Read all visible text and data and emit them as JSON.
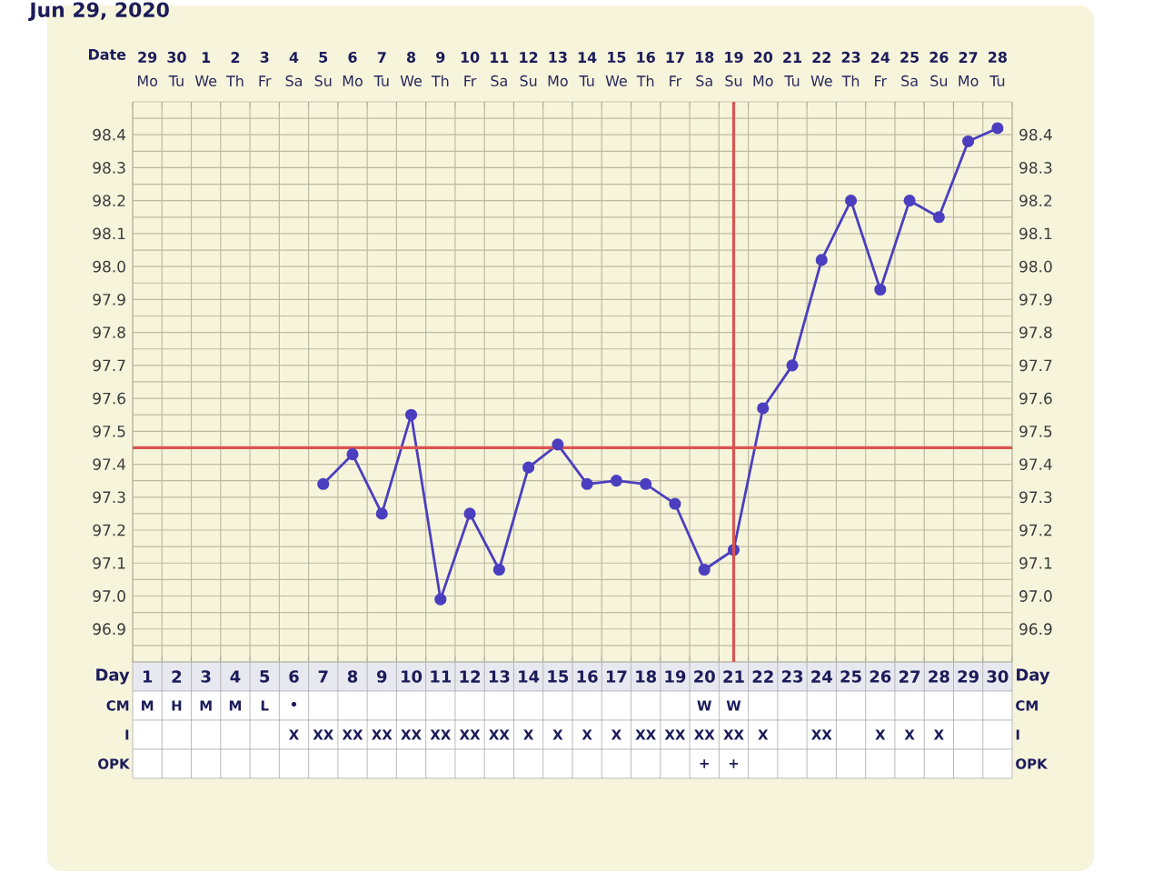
{
  "chart_data": [
    {
      "type": "line",
      "title": "Jun 29, 2020",
      "xlabel": "Day",
      "x2label": "Date",
      "categories": [
        "1",
        "2",
        "3",
        "4",
        "5",
        "6",
        "7",
        "8",
        "9",
        "10",
        "11",
        "12",
        "13",
        "14",
        "15",
        "16",
        "17",
        "18",
        "19",
        "20",
        "21",
        "22",
        "23",
        "24",
        "25",
        "26",
        "27",
        "28",
        "29",
        "30"
      ],
      "x2lim": [
        "2020-06-28T12:00",
        "2020-07-28T12:00"
      ],
      "x2ticks": [
        {
          "value": "2020-06-29",
          "label": "29"
        },
        {
          "value": "2020-06-30",
          "label": "30"
        },
        {
          "value": "2020-07-01",
          "label": "1"
        },
        {
          "value": "2020-07-02",
          "label": "2"
        },
        {
          "value": "2020-07-03",
          "label": "3"
        },
        {
          "value": "2020-07-04",
          "label": "4"
        },
        {
          "value": "2020-07-05",
          "label": "5"
        },
        {
          "value": "2020-07-06",
          "label": "6"
        },
        {
          "value": "2020-07-07",
          "label": "7"
        },
        {
          "value": "2020-07-08",
          "label": "8"
        },
        {
          "value": "2020-07-09",
          "label": "9"
        },
        {
          "value": "2020-07-10",
          "label": "10"
        },
        {
          "value": "2020-07-11",
          "label": "11"
        },
        {
          "value": "2020-07-12",
          "label": "12"
        },
        {
          "value": "2020-07-13",
          "label": "13"
        },
        {
          "value": "2020-07-14",
          "label": "14"
        },
        {
          "value": "2020-07-15",
          "label": "15"
        },
        {
          "value": "2020-07-16",
          "label": "16"
        },
        {
          "value": "2020-07-17",
          "label": "17"
        },
        {
          "value": "2020-07-18",
          "label": "18"
        },
        {
          "value": "2020-07-19",
          "label": "19"
        },
        {
          "value": "2020-07-20",
          "label": "20"
        },
        {
          "value": "2020-07-21",
          "label": "21"
        },
        {
          "value": "2020-07-22",
          "label": "22"
        },
        {
          "value": "2020-07-23",
          "label": "23"
        },
        {
          "value": "2020-07-24",
          "label": "24"
        },
        {
          "value": "2020-07-25",
          "label": "25"
        },
        {
          "value": "2020-07-26",
          "label": "26"
        },
        {
          "value": "2020-07-27",
          "label": "27"
        },
        {
          "value": "2020-07-28",
          "label": "28"
        }
      ],
      "annotations": [
        "Mo",
        "Tu",
        "We",
        "Th",
        "Fr",
        "Sa",
        "Su",
        "Mo",
        "Tu",
        "We",
        "Th",
        "Fr",
        "Sa",
        "Su",
        "Mo",
        "Tu",
        "We",
        "Th",
        "Fr",
        "Sa",
        "Su",
        "Mo",
        "Tu",
        "We",
        "Th",
        "Fr",
        "Sa",
        "Su",
        "Mo",
        "Tu"
      ],
      "ylim": [
        96.8,
        98.5
      ],
      "yticks": [
        {
          "value": 96.85,
          "label": null
        },
        96.9,
        {
          "value": 96.95,
          "label": null
        },
        {
          "value": 97.0,
          "label": "97.0"
        },
        {
          "value": 97.05,
          "label": null
        },
        97.1,
        {
          "value": 97.15,
          "label": null
        },
        97.2,
        {
          "value": 97.25,
          "label": null
        },
        97.3,
        {
          "value": 97.35,
          "label": null
        },
        97.4,
        97.5,
        {
          "value": 97.55,
          "label": null
        },
        97.6,
        {
          "value": 97.65,
          "label": null
        },
        97.7,
        {
          "value": 97.75,
          "label": null
        },
        97.8,
        {
          "value": 97.85,
          "label": null
        },
        97.9,
        {
          "value": 97.95,
          "label": null
        },
        {
          "value": 98.0,
          "label": "98.0"
        },
        {
          "value": 98.05,
          "label": null
        },
        98.1,
        {
          "value": 98.15,
          "label": null
        },
        98.2,
        {
          "value": 98.25,
          "label": null
        },
        98.3,
        {
          "value": 98.35,
          "label": null
        },
        98.4,
        {
          "value": 98.45,
          "label": null
        }
      ],
      "y2lim": [
        96.8,
        98.5
      ],
      "y2ticks": [
        96.9,
        {
          "value": 97.0,
          "label": "97.0"
        },
        97.1,
        97.2,
        97.3,
        97.4,
        97.5,
        97.6,
        97.7,
        97.8,
        97.9,
        {
          "value": 98.0,
          "label": "98.0"
        },
        98.1,
        98.2,
        98.3,
        98.4
      ],
      "grid": true,
      "marker": "circle",
      "line_style": "solid",
      "series": [
        {
          "color": "#4b3fbf",
          "values": [
            null,
            null,
            null,
            null,
            null,
            null,
            97.34,
            97.43,
            97.25,
            97.55,
            96.99,
            97.25,
            97.08,
            97.39,
            97.46,
            97.34,
            97.35,
            97.34,
            97.28,
            97.08,
            97.14,
            97.57,
            97.7,
            98.02,
            98.2,
            97.93,
            98.2,
            98.15,
            98.38,
            98.42
          ]
        }
      ],
      "ref_lines": [
        {
          "axis": "y",
          "value": 97.45,
          "color": "#d9534f"
        },
        {
          "axis": "x2",
          "value": "2020-07-19",
          "color": "#d9534f"
        }
      ]
    },
    {
      "type": "other",
      "y_categories": [
        "CM",
        "I",
        "OPK"
      ],
      "cell_labels": [
        [
          "M",
          "H",
          "M",
          "M",
          "L",
          "•",
          null,
          null,
          null,
          null,
          null,
          null,
          null,
          null,
          null,
          null,
          null,
          null,
          null,
          "W",
          "W",
          null,
          null,
          null,
          null,
          null,
          null,
          null,
          null,
          null
        ],
        [
          null,
          null,
          null,
          null,
          null,
          "X",
          "XX",
          "XX",
          "XX",
          "XX",
          "XX",
          "XX",
          "XX",
          "X",
          "X",
          "X",
          "X",
          "XX",
          "XX",
          "XX",
          "XX",
          "X",
          null,
          "XX",
          null,
          "X",
          "X",
          "X",
          null,
          null
        ],
        [
          null,
          null,
          null,
          null,
          null,
          null,
          null,
          null,
          null,
          null,
          null,
          null,
          null,
          null,
          null,
          null,
          null,
          null,
          null,
          "+",
          "+",
          null,
          null,
          null,
          null,
          null,
          null,
          null,
          null,
          null
        ]
      ]
    }
  ]
}
